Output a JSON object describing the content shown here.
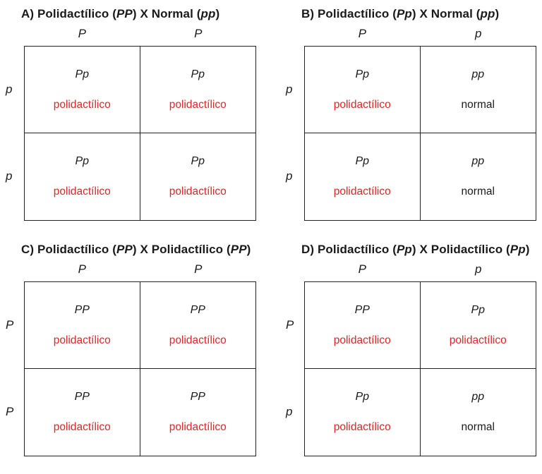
{
  "page": {
    "background_color": "#ffffff",
    "text_color": "#1a1a1a",
    "affected_color": "#e52520",
    "border_color": "#222222"
  },
  "panels": [
    {
      "id": "A",
      "title": {
        "prefix": "A) Polidactílico (",
        "genotype1": "PP",
        "middle": ") X Normal (",
        "genotype2": "pp",
        "suffix": ")"
      },
      "col_headers": [
        "P",
        "P"
      ],
      "row_headers": [
        "p",
        "p"
      ],
      "cells": [
        {
          "genotype": "Pp",
          "phenotype": "polidactílico",
          "pheno_class": "pheno pheno-red"
        },
        {
          "genotype": "Pp",
          "phenotype": "polidactílico",
          "pheno_class": "pheno pheno-red"
        },
        {
          "genotype": "Pp",
          "phenotype": "polidactílico",
          "pheno_class": "pheno pheno-red"
        },
        {
          "genotype": "Pp",
          "phenotype": "polidactílico",
          "pheno_class": "pheno pheno-red"
        }
      ]
    },
    {
      "id": "B",
      "title": {
        "prefix": "B) Polidactílico (",
        "genotype1": "Pp",
        "middle": ") X Normal (",
        "genotype2": "pp",
        "suffix": ")"
      },
      "col_headers": [
        "P",
        "p"
      ],
      "row_headers": [
        "p",
        "p"
      ],
      "cells": [
        {
          "genotype": "Pp",
          "phenotype": "polidactílico",
          "pheno_class": "pheno pheno-red"
        },
        {
          "genotype": "pp",
          "phenotype": "normal",
          "pheno_class": "pheno pheno-black"
        },
        {
          "genotype": "Pp",
          "phenotype": "polidactílico",
          "pheno_class": "pheno pheno-red"
        },
        {
          "genotype": "pp",
          "phenotype": "normal",
          "pheno_class": "pheno pheno-black"
        }
      ]
    },
    {
      "id": "C",
      "title": {
        "prefix": "C) Polidactílico (",
        "genotype1": "PP",
        "middle": ") X Polidactílico (",
        "genotype2": "PP",
        "suffix": ")"
      },
      "col_headers": [
        "P",
        "P"
      ],
      "row_headers": [
        "P",
        "P"
      ],
      "cells": [
        {
          "genotype": "PP",
          "phenotype": "polidactílico",
          "pheno_class": "pheno pheno-red"
        },
        {
          "genotype": "PP",
          "phenotype": "polidactílico",
          "pheno_class": "pheno pheno-red"
        },
        {
          "genotype": "PP",
          "phenotype": "polidactílico",
          "pheno_class": "pheno pheno-red"
        },
        {
          "genotype": "PP",
          "phenotype": "polidactílico",
          "pheno_class": "pheno pheno-red"
        }
      ]
    },
    {
      "id": "D",
      "title": {
        "prefix": "D) Polidactílico (",
        "genotype1": "Pp",
        "middle": ") X Polidactílico (",
        "genotype2": "Pp",
        "suffix": ")"
      },
      "col_headers": [
        "P",
        "p"
      ],
      "row_headers": [
        "P",
        "p"
      ],
      "cells": [
        {
          "genotype": "PP",
          "phenotype": "polidactílico",
          "pheno_class": "pheno pheno-red"
        },
        {
          "genotype": "Pp",
          "phenotype": "polidactílico",
          "pheno_class": "pheno pheno-red"
        },
        {
          "genotype": "Pp",
          "phenotype": "polidactílico",
          "pheno_class": "pheno pheno-red"
        },
        {
          "genotype": "pp",
          "phenotype": "normal",
          "pheno_class": "pheno pheno-black"
        }
      ]
    }
  ]
}
